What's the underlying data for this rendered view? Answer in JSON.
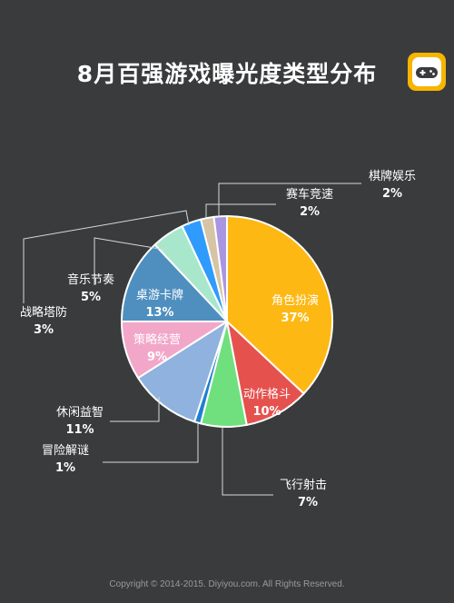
{
  "header": {
    "title": "8月百强游戏曝光度类型分布"
  },
  "footer": {
    "copyright": "Copyright © 2014-2015. Diyiyou.com. All Rights Reserved."
  },
  "colors": {
    "background": "#3a3b3d",
    "brand": "#f7b500"
  },
  "icons": {
    "logo": "gamepad-icon"
  },
  "chart_data": {
    "type": "pie",
    "title": "8月百强游戏曝光度类型分布",
    "slices": [
      {
        "name": "角色扮演",
        "value": 37,
        "label": "37%",
        "color": "#fdb813"
      },
      {
        "name": "动作格斗",
        "value": 10,
        "label": "10%",
        "color": "#e5524e"
      },
      {
        "name": "飞行射击",
        "value": 7,
        "label": "7%",
        "color": "#6fe07d"
      },
      {
        "name": "冒险解谜",
        "value": 1,
        "label": "1%",
        "color": "#1f7fd0"
      },
      {
        "name": "休闲益智",
        "value": 11,
        "label": "11%",
        "color": "#8fb2de"
      },
      {
        "name": "策略经营",
        "value": 9,
        "label": "9%",
        "color": "#f2a7c9"
      },
      {
        "name": "桌游卡牌",
        "value": 13,
        "label": "13%",
        "color": "#4f8fbf"
      },
      {
        "name": "音乐节奏",
        "value": 5,
        "label": "5%",
        "color": "#a8e7cc"
      },
      {
        "name": "战略塔防",
        "value": 3,
        "label": "3%",
        "color": "#2f9bff"
      },
      {
        "name": "赛车竞速",
        "value": 2,
        "label": "2%",
        "color": "#d6c4a6"
      },
      {
        "name": "棋牌娱乐",
        "value": 2,
        "label": "2%",
        "color": "#a996e3"
      }
    ]
  }
}
